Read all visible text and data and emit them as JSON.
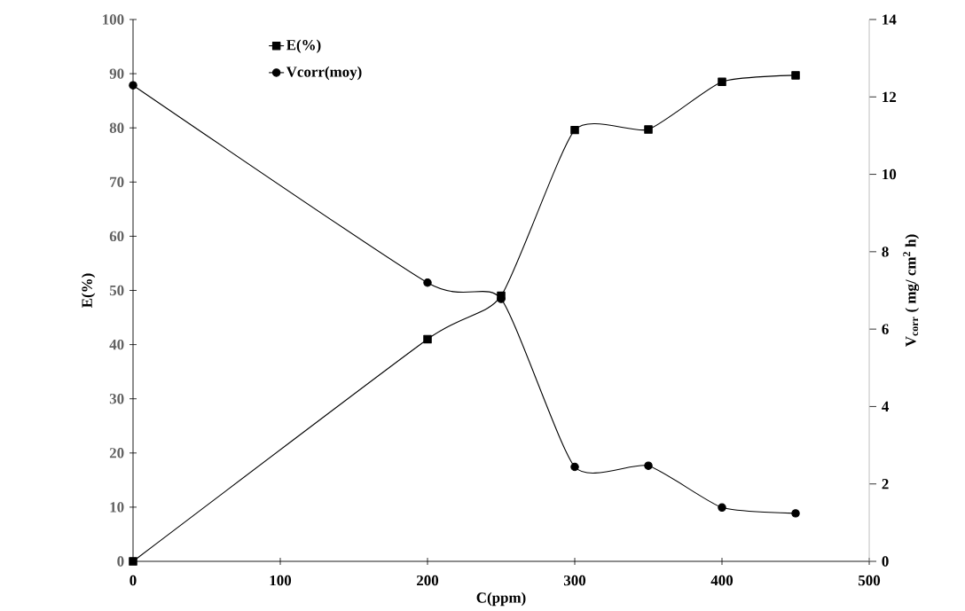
{
  "chart_data": {
    "type": "line",
    "xlabel": "C(ppm)",
    "ylabel": "E(%)",
    "y2label": "V$_{corr}$ ( mg/ cm$^{2}$ h)",
    "x": [
      0,
      200,
      250,
      300,
      350,
      400,
      450
    ],
    "series": [
      {
        "name": "E(%)",
        "color": "#000000",
        "marker": "square",
        "values": [
          0,
          41,
          49,
          79.6,
          79.7,
          88.5,
          89.7
        ]
      },
      {
        "name": "Vcorr(moy)",
        "color": "#000000",
        "marker": "circle",
        "axis": "y2",
        "values": [
          12.3,
          7.2,
          6.78,
          2.44,
          2.47,
          1.39,
          1.24
        ]
      }
    ],
    "xlim": [
      0,
      500
    ],
    "xticks": [
      0,
      100,
      200,
      300,
      400,
      500
    ],
    "ylim": [
      0,
      100
    ],
    "yticks": [
      0,
      10,
      20,
      30,
      40,
      50,
      60,
      70,
      80,
      90,
      100
    ],
    "y2lim": [
      0,
      14
    ],
    "y2ticks": [
      0,
      2,
      4,
      6,
      8,
      10,
      12,
      14
    ],
    "legend": "top left",
    "grid": false,
    "line_style": "solid"
  }
}
